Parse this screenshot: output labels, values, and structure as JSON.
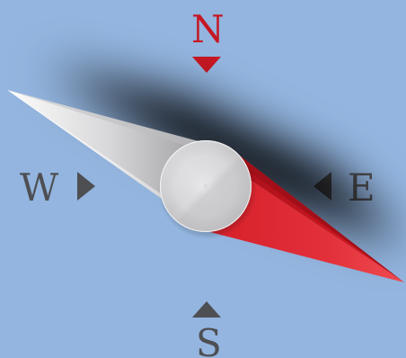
{
  "compass": {
    "north_label": "N",
    "south_label": "S",
    "east_label": "E",
    "west_label": "W"
  },
  "colors": {
    "background": "#93b5df",
    "north_accent": "#c61824",
    "label_gray": "#4e4f53",
    "needle_red": "#d8212d",
    "needle_silver": "#d9d9db"
  },
  "icons": {
    "north_marker": "triangle-down-icon",
    "south_marker": "triangle-up-icon",
    "west_marker": "triangle-right-icon",
    "east_marker": "triangle-left-icon",
    "hub": "circle-hub-icon"
  }
}
